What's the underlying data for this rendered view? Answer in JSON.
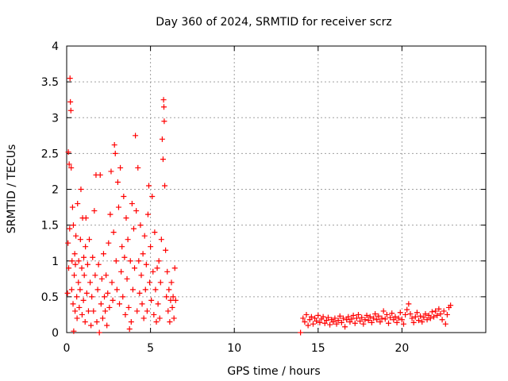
{
  "chart_data": {
    "type": "scatter",
    "title": "Day 360 of 2024, SRMTID for receiver scrz",
    "xlabel": "GPS time / hours",
    "ylabel": "SRMTID / TECUs",
    "xlim": [
      0,
      25
    ],
    "ylim": [
      0,
      4
    ],
    "x_ticks": [
      0,
      5,
      10,
      15,
      20
    ],
    "x_tick_labels": [
      "0",
      "5",
      "10",
      "15",
      "20"
    ],
    "y_ticks": [
      0,
      0.5,
      1,
      1.5,
      2,
      2.5,
      3,
      3.5,
      4
    ],
    "y_tick_labels": [
      "0",
      "0.5",
      "1",
      "1.5",
      "2",
      "2.5",
      "3",
      "3.5",
      "4"
    ],
    "grid": true,
    "marker": "+",
    "series": [
      {
        "name": "SRMTID",
        "color": "#ff0000",
        "points": [
          [
            0.05,
            0.55
          ],
          [
            0.08,
            1.25
          ],
          [
            0.1,
            2.52
          ],
          [
            0.12,
            0.9
          ],
          [
            0.15,
            2.35
          ],
          [
            0.18,
            1.45
          ],
          [
            0.2,
            3.55
          ],
          [
            0.22,
            3.22
          ],
          [
            0.25,
            3.1
          ],
          [
            0.27,
            2.3
          ],
          [
            0.3,
            0.6
          ],
          [
            0.32,
            1.0
          ],
          [
            0.35,
            1.75
          ],
          [
            0.38,
            0.4
          ],
          [
            0.4,
            1.5
          ],
          [
            0.42,
            0.02
          ],
          [
            0.45,
            0.8
          ],
          [
            0.48,
            1.1
          ],
          [
            0.5,
            0.3
          ],
          [
            0.52,
            0.95
          ],
          [
            0.55,
            1.35
          ],
          [
            0.6,
            0.5
          ],
          [
            0.62,
            0.2
          ],
          [
            0.65,
            1.8
          ],
          [
            0.7,
            0.7
          ],
          [
            0.72,
            1.0
          ],
          [
            0.75,
            0.35
          ],
          [
            0.8,
            0.6
          ],
          [
            0.82,
            1.3
          ],
          [
            0.85,
            2.0
          ],
          [
            0.9,
            0.9
          ],
          [
            0.92,
            0.25
          ],
          [
            0.95,
            1.6
          ],
          [
            1.0,
            0.45
          ],
          [
            1.02,
            1.05
          ],
          [
            1.05,
            0.8
          ],
          [
            1.1,
            0.15
          ],
          [
            1.12,
            1.2
          ],
          [
            1.15,
            1.6
          ],
          [
            1.2,
            0.55
          ],
          [
            1.25,
            0.95
          ],
          [
            1.3,
            0.3
          ],
          [
            1.35,
            1.3
          ],
          [
            1.4,
            0.7
          ],
          [
            1.45,
            0.1
          ],
          [
            1.5,
            0.5
          ],
          [
            1.55,
            1.05
          ],
          [
            1.6,
            0.3
          ],
          [
            1.65,
            1.7
          ],
          [
            1.7,
            0.8
          ],
          [
            1.75,
            2.2
          ],
          [
            1.8,
            0.15
          ],
          [
            1.85,
            0.6
          ],
          [
            1.9,
            0.95
          ],
          [
            1.95,
            0.0
          ],
          [
            2.0,
            2.2
          ],
          [
            2.05,
            0.4
          ],
          [
            2.1,
            0.75
          ],
          [
            2.15,
            0.2
          ],
          [
            2.2,
            1.1
          ],
          [
            2.25,
            0.5
          ],
          [
            2.3,
            0.3
          ],
          [
            2.35,
            0.8
          ],
          [
            2.4,
            0.1
          ],
          [
            2.45,
            0.55
          ],
          [
            2.5,
            1.25
          ],
          [
            2.55,
            0.35
          ],
          [
            2.6,
            1.65
          ],
          [
            2.65,
            2.25
          ],
          [
            2.7,
            0.7
          ],
          [
            2.75,
            0.45
          ],
          [
            2.8,
            1.4
          ],
          [
            2.85,
            2.62
          ],
          [
            2.9,
            2.5
          ],
          [
            2.95,
            1.0
          ],
          [
            3.0,
            0.6
          ],
          [
            3.05,
            2.1
          ],
          [
            3.1,
            1.75
          ],
          [
            3.15,
            0.4
          ],
          [
            3.2,
            2.3
          ],
          [
            3.25,
            0.85
          ],
          [
            3.3,
            1.2
          ],
          [
            3.35,
            0.5
          ],
          [
            3.4,
            1.9
          ],
          [
            3.45,
            1.05
          ],
          [
            3.5,
            0.25
          ],
          [
            3.55,
            1.6
          ],
          [
            3.6,
            0.75
          ],
          [
            3.65,
            1.3
          ],
          [
            3.7,
            0.35
          ],
          [
            3.75,
            0.05
          ],
          [
            3.8,
            1.0
          ],
          [
            3.85,
            0.15
          ],
          [
            3.9,
            1.8
          ],
          [
            3.95,
            0.6
          ],
          [
            4.0,
            1.45
          ],
          [
            4.05,
            0.9
          ],
          [
            4.1,
            2.75
          ],
          [
            4.15,
            1.7
          ],
          [
            4.2,
            0.3
          ],
          [
            4.25,
            2.3
          ],
          [
            4.3,
            1.0
          ],
          [
            4.35,
            0.55
          ],
          [
            4.4,
            1.5
          ],
          [
            4.45,
            0.8
          ],
          [
            4.5,
            0.4
          ],
          [
            4.55,
            1.1
          ],
          [
            4.6,
            0.2
          ],
          [
            4.65,
            1.35
          ],
          [
            4.7,
            0.6
          ],
          [
            4.75,
            0.95
          ],
          [
            4.8,
            0.3
          ],
          [
            4.85,
            1.65
          ],
          [
            4.9,
            2.05
          ],
          [
            4.95,
            0.7
          ],
          [
            5.0,
            1.2
          ],
          [
            5.05,
            0.45
          ],
          [
            5.1,
            1.9
          ],
          [
            5.15,
            0.85
          ],
          [
            5.2,
            0.25
          ],
          [
            5.25,
            1.4
          ],
          [
            5.3,
            0.6
          ],
          [
            5.35,
            0.15
          ],
          [
            5.4,
            0.9
          ],
          [
            5.45,
            0.4
          ],
          [
            5.5,
            1.0
          ],
          [
            5.55,
            0.2
          ],
          [
            5.6,
            0.7
          ],
          [
            5.65,
            1.3
          ],
          [
            5.7,
            2.7
          ],
          [
            5.75,
            2.42
          ],
          [
            5.78,
            3.25
          ],
          [
            5.8,
            3.15
          ],
          [
            5.82,
            2.95
          ],
          [
            5.85,
            2.05
          ],
          [
            5.9,
            1.15
          ],
          [
            5.95,
            0.5
          ],
          [
            6.0,
            0.85
          ],
          [
            6.05,
            0.3
          ],
          [
            6.1,
            0.6
          ],
          [
            6.15,
            0.15
          ],
          [
            6.2,
            0.45
          ],
          [
            6.25,
            0.7
          ],
          [
            6.3,
            0.35
          ],
          [
            6.35,
            0.5
          ],
          [
            6.4,
            0.2
          ],
          [
            6.45,
            0.9
          ],
          [
            6.5,
            0.45
          ],
          [
            13.95,
            0.0
          ],
          [
            14.1,
            0.2
          ],
          [
            14.2,
            0.15
          ],
          [
            14.3,
            0.25
          ],
          [
            14.4,
            0.1
          ],
          [
            14.5,
            0.18
          ],
          [
            14.6,
            0.22
          ],
          [
            14.7,
            0.12
          ],
          [
            14.8,
            0.2
          ],
          [
            14.9,
            0.16
          ],
          [
            15.0,
            0.24
          ],
          [
            15.1,
            0.14
          ],
          [
            15.2,
            0.19
          ],
          [
            15.3,
            0.22
          ],
          [
            15.4,
            0.13
          ],
          [
            15.5,
            0.17
          ],
          [
            15.6,
            0.21
          ],
          [
            15.7,
            0.11
          ],
          [
            15.8,
            0.18
          ],
          [
            15.9,
            0.15
          ],
          [
            16.0,
            0.2
          ],
          [
            16.1,
            0.12
          ],
          [
            16.2,
            0.17
          ],
          [
            16.3,
            0.23
          ],
          [
            16.4,
            0.14
          ],
          [
            16.5,
            0.2
          ],
          [
            16.6,
            0.08
          ],
          [
            16.7,
            0.18
          ],
          [
            16.8,
            0.22
          ],
          [
            16.9,
            0.15
          ],
          [
            17.0,
            0.19
          ],
          [
            17.1,
            0.24
          ],
          [
            17.2,
            0.13
          ],
          [
            17.3,
            0.2
          ],
          [
            17.4,
            0.25
          ],
          [
            17.5,
            0.16
          ],
          [
            17.6,
            0.21
          ],
          [
            17.7,
            0.12
          ],
          [
            17.8,
            0.18
          ],
          [
            17.9,
            0.24
          ],
          [
            18.0,
            0.17
          ],
          [
            18.1,
            0.22
          ],
          [
            18.2,
            0.14
          ],
          [
            18.3,
            0.2
          ],
          [
            18.4,
            0.26
          ],
          [
            18.5,
            0.18
          ],
          [
            18.6,
            0.23
          ],
          [
            18.7,
            0.15
          ],
          [
            18.8,
            0.2
          ],
          [
            18.9,
            0.3
          ],
          [
            19.0,
            0.19
          ],
          [
            19.1,
            0.25
          ],
          [
            19.2,
            0.13
          ],
          [
            19.3,
            0.21
          ],
          [
            19.4,
            0.27
          ],
          [
            19.5,
            0.18
          ],
          [
            19.6,
            0.22
          ],
          [
            19.7,
            0.14
          ],
          [
            19.8,
            0.2
          ],
          [
            19.9,
            0.28
          ],
          [
            20.0,
            0.18
          ],
          [
            20.1,
            0.12
          ],
          [
            20.2,
            0.25
          ],
          [
            20.3,
            0.32
          ],
          [
            20.4,
            0.4
          ],
          [
            20.5,
            0.26
          ],
          [
            20.6,
            0.2
          ],
          [
            20.7,
            0.14
          ],
          [
            20.8,
            0.22
          ],
          [
            20.9,
            0.28
          ],
          [
            21.0,
            0.17
          ],
          [
            21.1,
            0.23
          ],
          [
            21.2,
            0.15
          ],
          [
            21.3,
            0.21
          ],
          [
            21.4,
            0.26
          ],
          [
            21.5,
            0.18
          ],
          [
            21.6,
            0.24
          ],
          [
            21.7,
            0.2
          ],
          [
            21.8,
            0.29
          ],
          [
            21.9,
            0.22
          ],
          [
            22.0,
            0.3
          ],
          [
            22.1,
            0.24
          ],
          [
            22.2,
            0.33
          ],
          [
            22.3,
            0.26
          ],
          [
            22.4,
            0.18
          ],
          [
            22.5,
            0.3
          ],
          [
            22.6,
            0.12
          ],
          [
            22.7,
            0.25
          ],
          [
            22.8,
            0.35
          ],
          [
            22.9,
            0.38
          ]
        ]
      }
    ]
  }
}
